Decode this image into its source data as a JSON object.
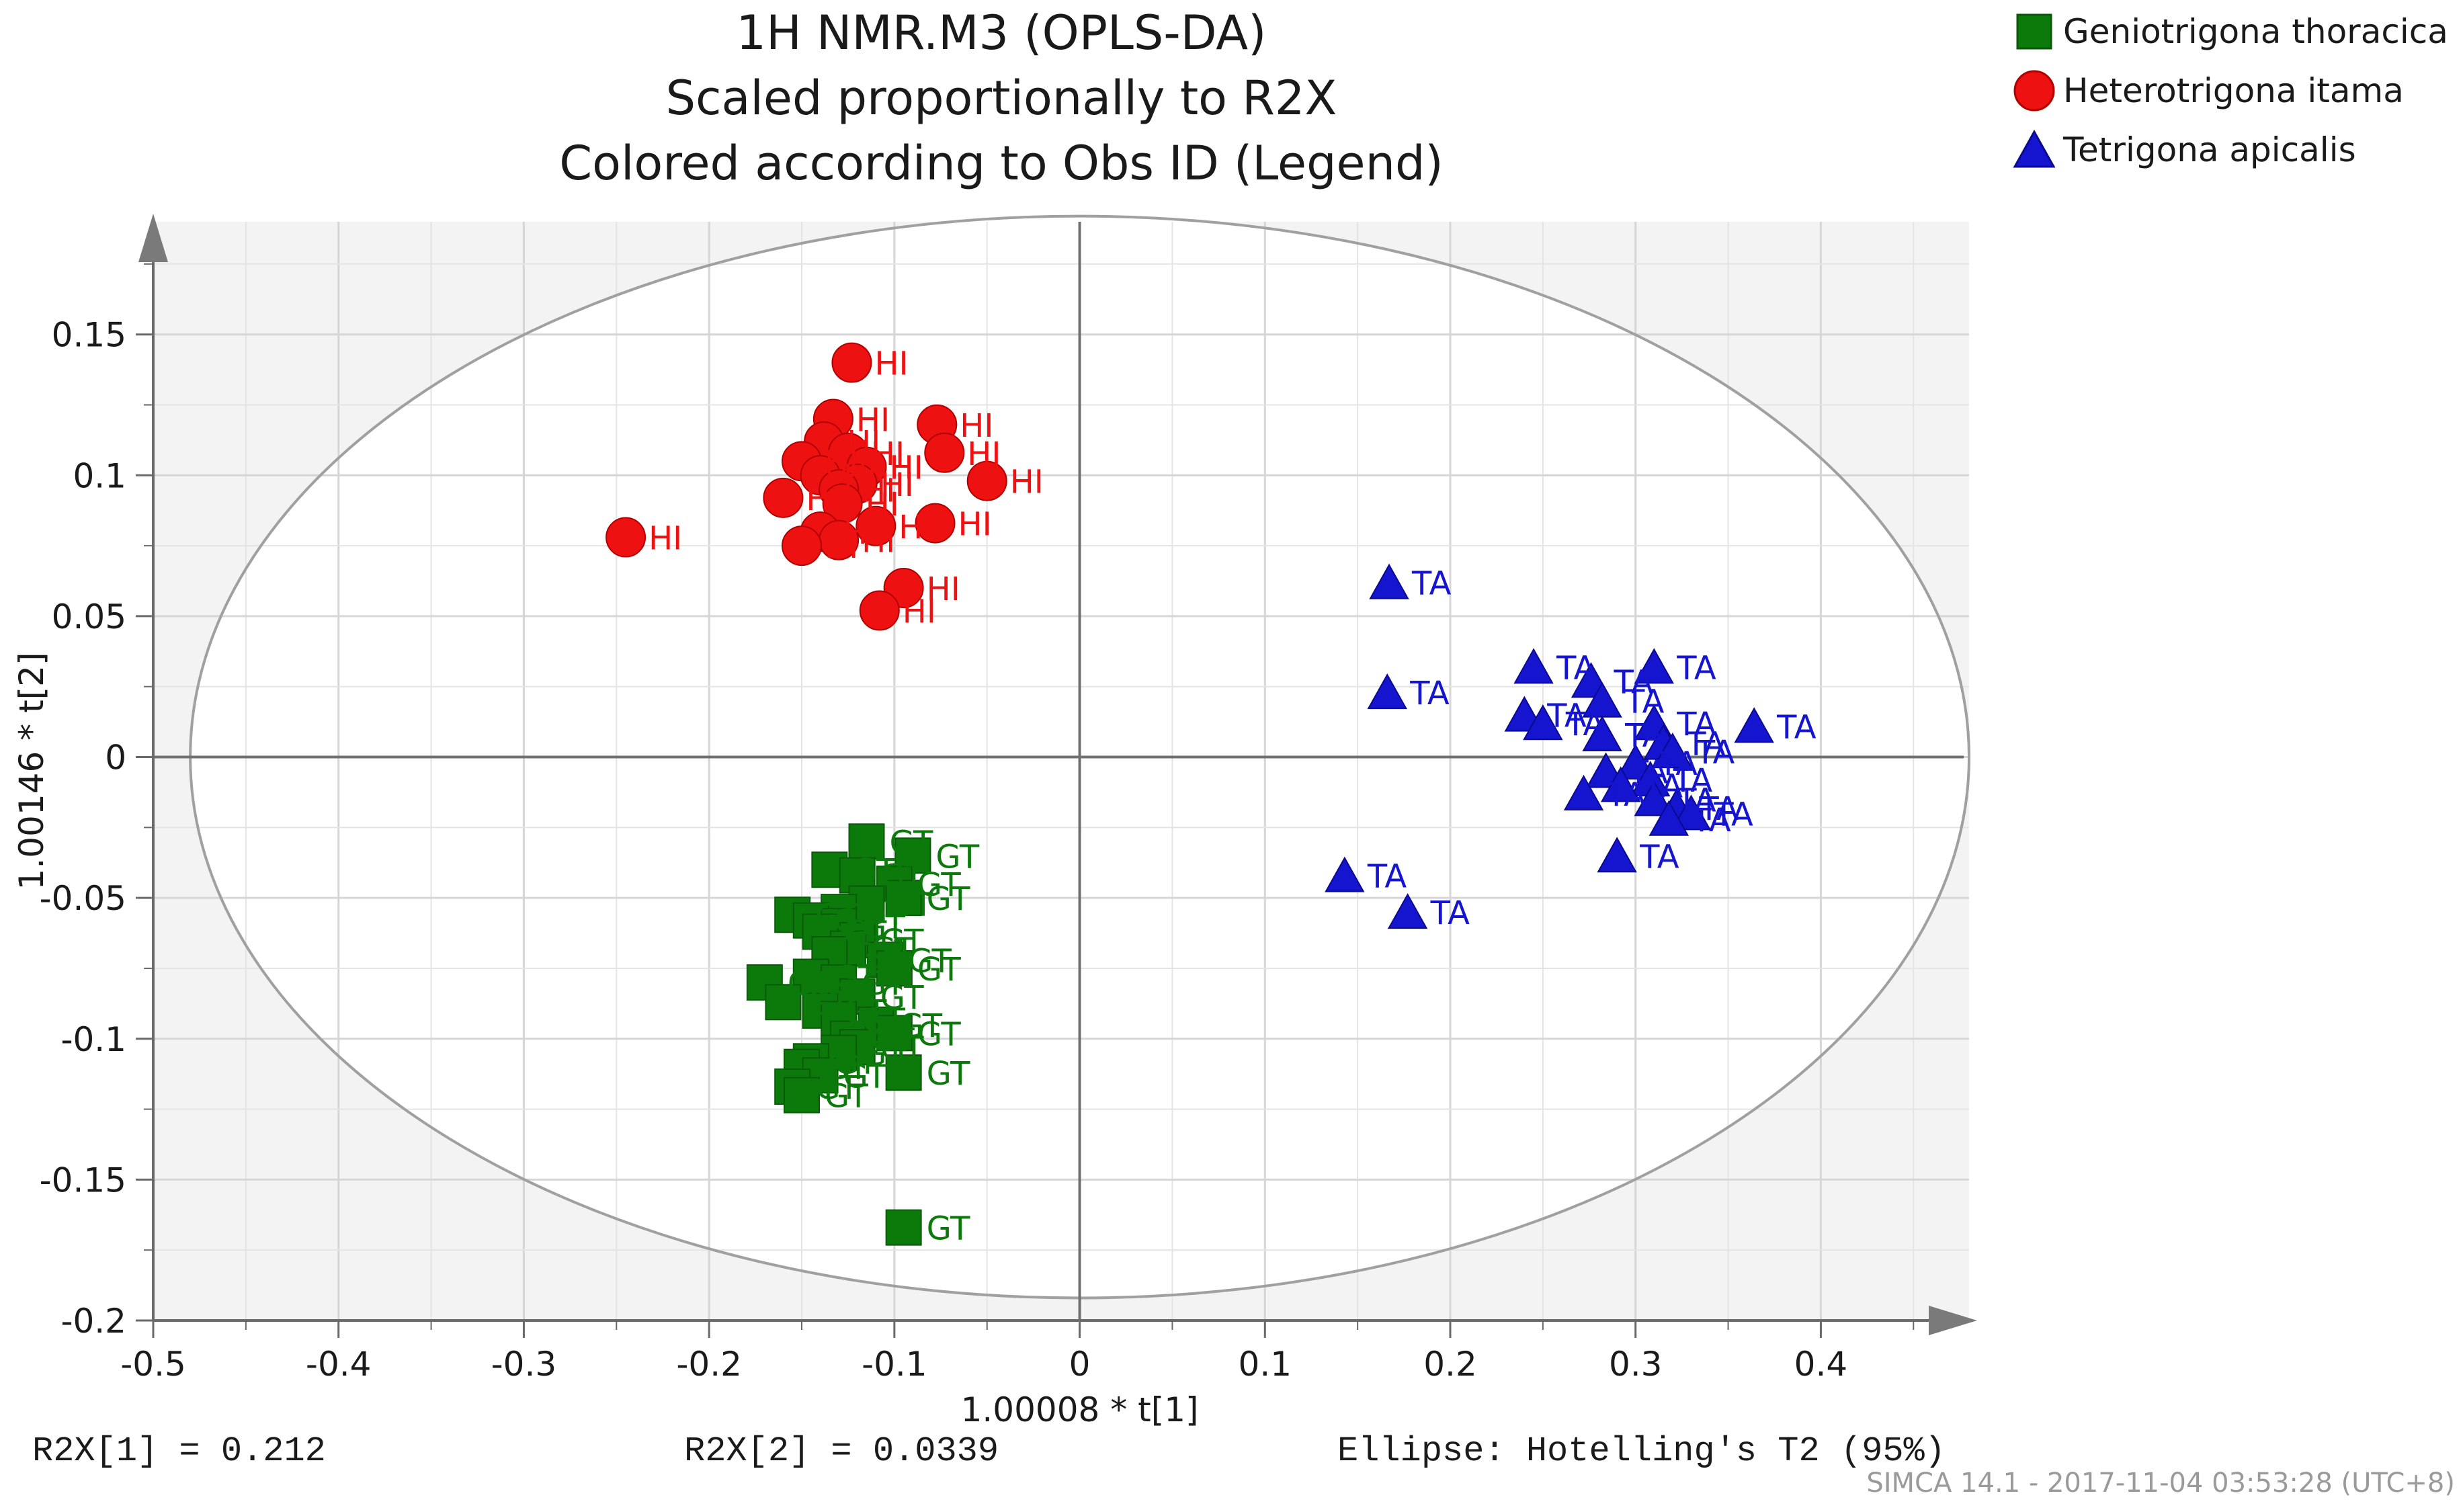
{
  "chart_data": {
    "type": "scatter",
    "title": [
      "1H NMR.M3 (OPLS-DA)",
      "Scaled proportionally to R2X",
      "Colored according to Obs ID (Legend)"
    ],
    "xlabel": "1.00008 * t[1]",
    "ylabel": "1.00146 * t[2]",
    "xlim": [
      -0.5,
      0.48
    ],
    "ylim": [
      -0.2,
      0.19
    ],
    "xticks": [
      -0.5,
      -0.4,
      -0.3,
      -0.2,
      -0.1,
      0,
      0.1,
      0.2,
      0.3,
      0.4
    ],
    "xtick_labels": [
      "-0.5",
      "-0.4",
      "-0.3",
      "-0.2",
      "-0.1",
      "0",
      "0.1",
      "0.2",
      "0.3",
      "0.4"
    ],
    "yticks": [
      -0.2,
      -0.15,
      -0.1,
      -0.05,
      0,
      0.05,
      0.1,
      0.15
    ],
    "ytick_labels": [
      "-0.2",
      "-0.15",
      "-0.1",
      "-0.05",
      "0",
      "0.05",
      "0.1",
      "0.15"
    ],
    "grid": true,
    "ellipse": {
      "label": "Hotelling's T2 (95%)",
      "center": [
        0,
        0
      ],
      "rx": 0.48,
      "ry": 0.192
    },
    "series": [
      {
        "name": "Geniotrigona thoracica",
        "label": "GT",
        "marker": "square",
        "color": "#0b7a0b",
        "points": [
          [
            -0.115,
            -0.03
          ],
          [
            -0.09,
            -0.035
          ],
          [
            -0.135,
            -0.04
          ],
          [
            -0.12,
            -0.042
          ],
          [
            -0.1,
            -0.045
          ],
          [
            -0.095,
            -0.05
          ],
          [
            -0.115,
            -0.052
          ],
          [
            -0.13,
            -0.055
          ],
          [
            -0.155,
            -0.056
          ],
          [
            -0.145,
            -0.058
          ],
          [
            -0.13,
            -0.06
          ],
          [
            -0.14,
            -0.062
          ],
          [
            -0.12,
            -0.065
          ],
          [
            -0.125,
            -0.068
          ],
          [
            -0.135,
            -0.07
          ],
          [
            -0.105,
            -0.072
          ],
          [
            -0.1,
            -0.075
          ],
          [
            -0.145,
            -0.078
          ],
          [
            -0.17,
            -0.08
          ],
          [
            -0.13,
            -0.08
          ],
          [
            -0.12,
            -0.085
          ],
          [
            -0.16,
            -0.087
          ],
          [
            -0.14,
            -0.09
          ],
          [
            -0.13,
            -0.093
          ],
          [
            -0.11,
            -0.095
          ],
          [
            -0.1,
            -0.098
          ],
          [
            -0.125,
            -0.1
          ],
          [
            -0.12,
            -0.103
          ],
          [
            -0.13,
            -0.105
          ],
          [
            -0.145,
            -0.108
          ],
          [
            -0.15,
            -0.11
          ],
          [
            -0.095,
            -0.112
          ],
          [
            -0.14,
            -0.113
          ],
          [
            -0.155,
            -0.117
          ],
          [
            -0.15,
            -0.12
          ],
          [
            -0.095,
            -0.167
          ]
        ],
        "tagged": [
          [
            -0.09,
            -0.035
          ],
          [
            -0.095,
            -0.05
          ],
          [
            -0.1,
            -0.075
          ],
          [
            -0.1,
            -0.098
          ],
          [
            -0.095,
            -0.112
          ],
          [
            -0.15,
            -0.12
          ],
          [
            -0.095,
            -0.167
          ]
        ]
      },
      {
        "name": "Heterotrigona itama",
        "label": "HI",
        "marker": "circle",
        "color": "#ee1111",
        "points": [
          [
            -0.123,
            0.14
          ],
          [
            -0.133,
            0.12
          ],
          [
            -0.077,
            0.118
          ],
          [
            -0.138,
            0.112
          ],
          [
            -0.125,
            0.108
          ],
          [
            -0.15,
            0.105
          ],
          [
            -0.073,
            0.108
          ],
          [
            -0.115,
            0.103
          ],
          [
            -0.14,
            0.1
          ],
          [
            -0.05,
            0.098
          ],
          [
            -0.12,
            0.097
          ],
          [
            -0.13,
            0.095
          ],
          [
            -0.16,
            0.092
          ],
          [
            -0.128,
            0.09
          ],
          [
            -0.078,
            0.083
          ],
          [
            -0.11,
            0.082
          ],
          [
            -0.14,
            0.08
          ],
          [
            -0.245,
            0.078
          ],
          [
            -0.13,
            0.077
          ],
          [
            -0.15,
            0.075
          ],
          [
            -0.095,
            0.06
          ],
          [
            -0.108,
            0.052
          ]
        ],
        "tagged": [
          [
            -0.123,
            0.14
          ],
          [
            -0.077,
            0.118
          ],
          [
            -0.073,
            0.108
          ],
          [
            -0.05,
            0.098
          ],
          [
            -0.078,
            0.083
          ],
          [
            -0.245,
            0.078
          ],
          [
            -0.095,
            0.06
          ],
          [
            -0.108,
            0.052
          ]
        ]
      },
      {
        "name": "Tetrigona apicalis",
        "label": "TA",
        "marker": "triangle",
        "color": "#1515d0",
        "points": [
          [
            0.167,
            0.062
          ],
          [
            0.166,
            0.023
          ],
          [
            0.245,
            0.032
          ],
          [
            0.31,
            0.032
          ],
          [
            0.276,
            0.027
          ],
          [
            0.282,
            0.02
          ],
          [
            0.24,
            0.015
          ],
          [
            0.25,
            0.012
          ],
          [
            0.31,
            0.012
          ],
          [
            0.364,
            0.011
          ],
          [
            0.282,
            0.008
          ],
          [
            0.315,
            0.005
          ],
          [
            0.32,
            0.002
          ],
          [
            0.3,
            -0.002
          ],
          [
            0.284,
            -0.005
          ],
          [
            0.308,
            -0.008
          ],
          [
            0.292,
            -0.01
          ],
          [
            0.272,
            -0.013
          ],
          [
            0.31,
            -0.015
          ],
          [
            0.322,
            -0.018
          ],
          [
            0.33,
            -0.02
          ],
          [
            0.318,
            -0.022
          ],
          [
            0.29,
            -0.035
          ],
          [
            0.143,
            -0.042
          ],
          [
            0.177,
            -0.055
          ]
        ],
        "tagged": [
          [
            0.167,
            0.062
          ],
          [
            0.166,
            0.023
          ],
          [
            0.31,
            0.032
          ],
          [
            0.364,
            0.011
          ],
          [
            0.29,
            -0.035
          ],
          [
            0.143,
            -0.042
          ],
          [
            0.177,
            -0.055
          ]
        ]
      }
    ]
  },
  "stats": {
    "r2x1": "R2X[1] = 0.212",
    "r2x2": "R2X[2] = 0.0339",
    "ellipse_label": "Ellipse: Hotelling's T2 (95%)"
  },
  "footer": "SIMCA 14.1 - 2017-11-04 03:53:28 (UTC+8)"
}
